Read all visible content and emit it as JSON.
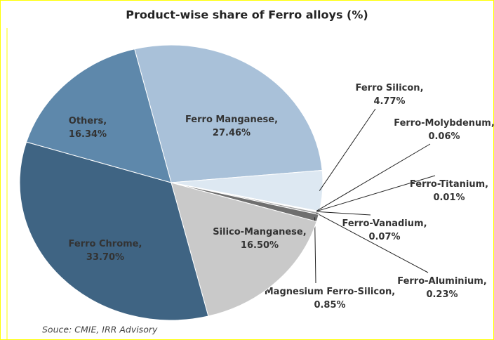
{
  "chart_data": {
    "type": "pie",
    "title": "Product-wise share of Ferro alloys (%)",
    "source": "Souce: CMIE, IRR Advisory",
    "label_separator": ",",
    "categories": [
      "Ferro Manganese",
      "Ferro Silicon",
      "Ferro-Molybdenum",
      "Ferro-Titanium",
      "Ferro-Vanadium",
      "Ferro-Aluminium",
      "Magnesium Ferro-Silicon",
      "Silico-Manganese",
      "Ferro Chrome",
      "Others"
    ],
    "values": [
      27.46,
      4.77,
      0.06,
      0.01,
      0.07,
      0.23,
      0.85,
      16.5,
      33.7,
      16.34
    ],
    "value_labels": [
      "27.46%",
      "4.77%",
      "0.06%",
      "0.01%",
      "0.07%",
      "0.23%",
      "0.85%",
      "16.50%",
      "33.70%",
      "16.34%"
    ],
    "colors": [
      "#a9c1d9",
      "#dde8f2",
      "#9aa4ad",
      "#b0b0b0",
      "#8c8c8c",
      "#a0a0a0",
      "#6f6f6f",
      "#c9c9c9",
      "#3f6483",
      "#5e88ab"
    ]
  }
}
